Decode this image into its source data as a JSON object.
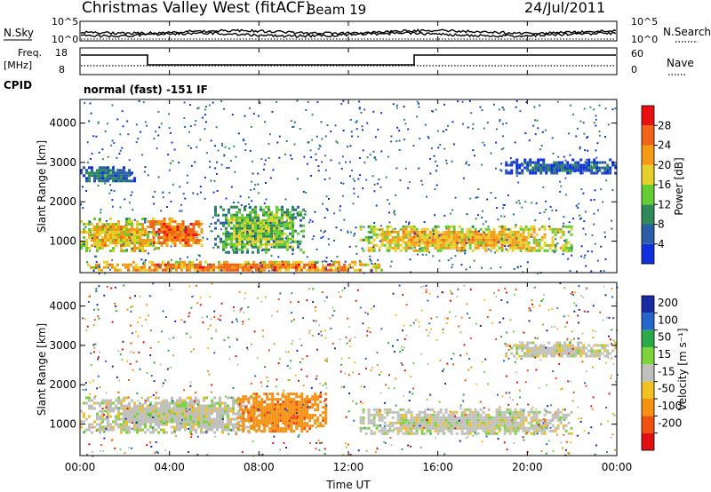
{
  "header": {
    "station": "Christmas Valley West (fitACF)",
    "beam": "Beam 19",
    "date": "24/Jul/2011"
  },
  "status_panels": {
    "nsky_label": "N.Sky",
    "noise_ticks_left": [
      "10^5",
      "10^0"
    ],
    "noise_ticks_right": [
      "10^5",
      "10^0"
    ],
    "nsearch_label": "N.Search",
    "freq_label": "Freq.",
    "freq_unit": "[MHz]",
    "freq_ticks": [
      "18",
      "8"
    ],
    "nave_ticks": [
      "60",
      "0"
    ],
    "nave_label": "Nave",
    "cpid_label": "CPID",
    "cpid_text": "normal (fast) -151 IF"
  },
  "axes": {
    "ylabel": "Slant Range [km]",
    "xlabel": "Time UT",
    "y_ticks": [
      "1000",
      "2000",
      "3000",
      "4000"
    ],
    "x_ticks": [
      "00:00",
      "04:00",
      "08:00",
      "12:00",
      "16:00",
      "20:00",
      "00:00"
    ]
  },
  "colorbars": {
    "power": {
      "label": "Power [dB]",
      "ticks": [
        "4",
        "8",
        "12",
        "16",
        "20",
        "24",
        "28"
      ],
      "colors": [
        "#1030e0",
        "#2a5fa8",
        "#2e8b57",
        "#66cc33",
        "#e6d02a",
        "#f59a14",
        "#f06418",
        "#e81010"
      ]
    },
    "velocity": {
      "label": "Velocity [m s⁻¹]",
      "ticks": [
        "200",
        "100",
        "50",
        "15",
        "-15",
        "-50",
        "-100",
        "-200"
      ],
      "colors": [
        "#1a2aa0",
        "#2466cc",
        "#2aa84a",
        "#7cd43a",
        "#c0c0bc",
        "#f2c020",
        "#f59214",
        "#f05010",
        "#e01010"
      ]
    }
  },
  "chart_data": [
    {
      "type": "heatmap",
      "title": "Power",
      "xlabel": "Time UT",
      "ylabel": "Slant Range [km]",
      "xlim": [
        0,
        24
      ],
      "ylim": [
        200,
        4600
      ],
      "regions": [
        {
          "t": [
            0,
            3.5
          ],
          "range": [
            750,
            1600
          ],
          "power": 20
        },
        {
          "t": [
            3.0,
            5.5
          ],
          "range": [
            900,
            1600
          ],
          "power": 26
        },
        {
          "t": [
            0.2,
            13.5
          ],
          "range": [
            250,
            500
          ],
          "power": 24
        },
        {
          "t": [
            6.0,
            10.0
          ],
          "range": [
            700,
            1900
          ],
          "power": 14
        },
        {
          "t": [
            12.5,
            22.0
          ],
          "range": [
            750,
            1400
          ],
          "power": 20
        },
        {
          "t": [
            0,
            2.5
          ],
          "range": [
            2500,
            2900
          ],
          "power": 8
        },
        {
          "t": [
            19.0,
            24.0
          ],
          "range": [
            2700,
            3100
          ],
          "power": 6
        }
      ]
    },
    {
      "type": "heatmap",
      "title": "Velocity",
      "xlabel": "Time UT",
      "ylabel": "Slant Range [km]",
      "xlim": [
        0,
        24
      ],
      "ylim": [
        200,
        4600
      ],
      "regions": [
        {
          "t": [
            0,
            8.0
          ],
          "range": [
            800,
            1700
          ],
          "velocity": 0
        },
        {
          "t": [
            7.0,
            11.0
          ],
          "range": [
            800,
            1800
          ],
          "velocity": -60
        },
        {
          "t": [
            12.5,
            22.0
          ],
          "range": [
            750,
            1400
          ],
          "velocity": 0
        },
        {
          "t": [
            19.0,
            24.0
          ],
          "range": [
            2700,
            3100
          ],
          "velocity": 0
        }
      ]
    }
  ]
}
